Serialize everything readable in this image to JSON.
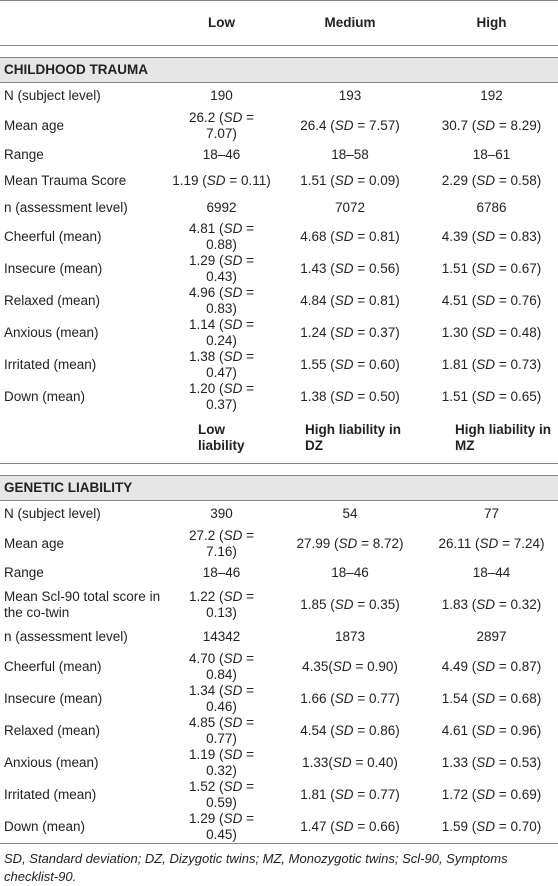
{
  "table": {
    "sections": [
      {
        "columns": [
          "Low",
          "Medium",
          "High"
        ],
        "title": "CHILDHOOD TRAUMA",
        "rows": [
          [
            "N (subject level)",
            "190",
            "193",
            "192"
          ],
          [
            "Mean age",
            "26.2 (SD = 7.07)",
            "26.4 (SD = 7.57)",
            "30.7 (SD = 8.29)"
          ],
          [
            "Range",
            "18–46",
            "18–58",
            "18–61"
          ],
          [
            "Mean Trauma Score",
            "1.19 (SD = 0.11)",
            "1.51 (SD = 0.09)",
            "2.29 (SD = 0.58)"
          ],
          [
            "n (assessment level)",
            "6992",
            "7072",
            "6786"
          ],
          [
            "Cheerful (mean)",
            "4.81 (SD = 0.88)",
            "4.68 (SD = 0.81)",
            "4.39 (SD = 0.83)"
          ],
          [
            "Insecure (mean)",
            "1.29 (SD = 0.43)",
            "1.43 (SD = 0.56)",
            "1.51 (SD = 0.67)"
          ],
          [
            "Relaxed (mean)",
            "4.96 (SD = 0.83)",
            "4.84 (SD = 0.81)",
            "4.51 (SD = 0.76)"
          ],
          [
            "Anxious (mean)",
            "1.14 (SD = 0.24)",
            "1.24 (SD = 0.37)",
            "1.30 (SD = 0.48)"
          ],
          [
            "Irritated (mean)",
            "1.38 (SD = 0.47)",
            "1.55 (SD = 0.60)",
            "1.81 (SD = 0.73)"
          ],
          [
            "Down (mean)",
            "1.20 (SD = 0.37)",
            "1.38 (SD = 0.50)",
            "1.51 (SD = 0.65)"
          ]
        ]
      },
      {
        "columns": [
          "Low liability",
          "High liability in DZ",
          "High liability in MZ"
        ],
        "title": "GENETIC LIABILITY",
        "rows": [
          [
            "N (subject level)",
            "390",
            "54",
            "77"
          ],
          [
            "Mean age",
            "27.2 (SD = 7.16)",
            "27.99 (SD = 8.72)",
            "26.11 (SD = 7.24)"
          ],
          [
            "Range",
            "18–46",
            "18–46",
            "18–44"
          ],
          [
            "Mean Scl-90 total score in the co-twin",
            "1.22 (SD = 0.13)",
            "1.85 (SD = 0.35)",
            "1.83 (SD = 0.32)"
          ],
          [
            "n (assessment level)",
            "14342",
            "1873",
            "2897"
          ],
          [
            "Cheerful (mean)",
            "4.70 (SD = 0.84)",
            "4.35(SD = 0.90)",
            "4.49 (SD = 0.87)"
          ],
          [
            "Insecure (mean)",
            "1.34 (SD = 0.46)",
            "1.66 (SD = 0.77)",
            "1.54 (SD = 0.68)"
          ],
          [
            "Relaxed (mean)",
            "4.85 (SD = 0.77)",
            "4.54 (SD = 0.86)",
            "4.61 (SD = 0.96)"
          ],
          [
            "Anxious (mean)",
            "1.19 (SD = 0.32)",
            "1.33(SD = 0.40)",
            "1.33 (SD = 0.53)"
          ],
          [
            "Irritated (mean)",
            "1.52 (SD = 0.59)",
            "1.81 (SD = 0.77)",
            "1.72 (SD = 0.69)"
          ],
          [
            "Down (mean)",
            "1.29 (SD = 0.45)",
            "1.47 (SD = 0.66)",
            "1.59 (SD = 0.70)"
          ]
        ]
      }
    ],
    "footnote": "SD, Standard deviation; DZ, Dizygotic twins; MZ, Monozygotic twins; Scl-90, Symptoms checklist-90."
  }
}
